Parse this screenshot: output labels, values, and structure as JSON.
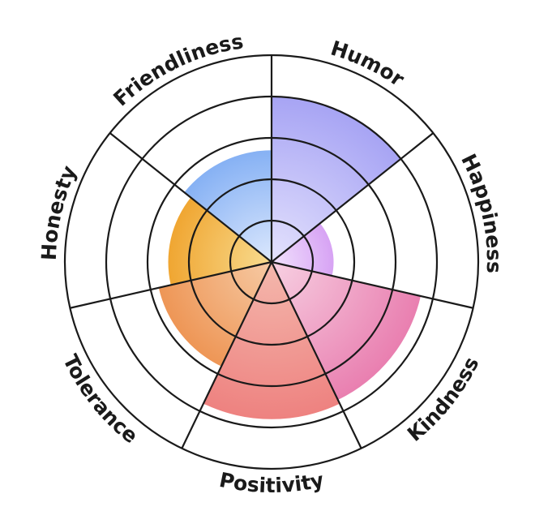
{
  "chart_data": {
    "type": "polar-area",
    "categories": [
      "Humor",
      "Happiness",
      "Kindness",
      "Positivity",
      "Tolerance",
      "Honesty",
      "Friendliness"
    ],
    "values": [
      4.0,
      1.5,
      3.7,
      3.8,
      2.8,
      2.5,
      2.7
    ],
    "rlim": [
      0,
      5
    ],
    "ring_count": 5,
    "grid": true,
    "colors": [
      {
        "inner": "#e4e2fd",
        "outer": "#a7a4f4"
      },
      {
        "inner": "#f1e2fd",
        "outer": "#d7a3f4"
      },
      {
        "inner": "#f7d0e2",
        "outer": "#e97fb0"
      },
      {
        "inner": "#f4b8ad",
        "outer": "#ee8280"
      },
      {
        "inner": "#f6caa4",
        "outer": "#ee9656"
      },
      {
        "inner": "#f8dc90",
        "outer": "#f0a632"
      },
      {
        "inner": "#dce8fd",
        "outer": "#86b1f4"
      }
    ],
    "grid_color": "#1a1a1a"
  }
}
